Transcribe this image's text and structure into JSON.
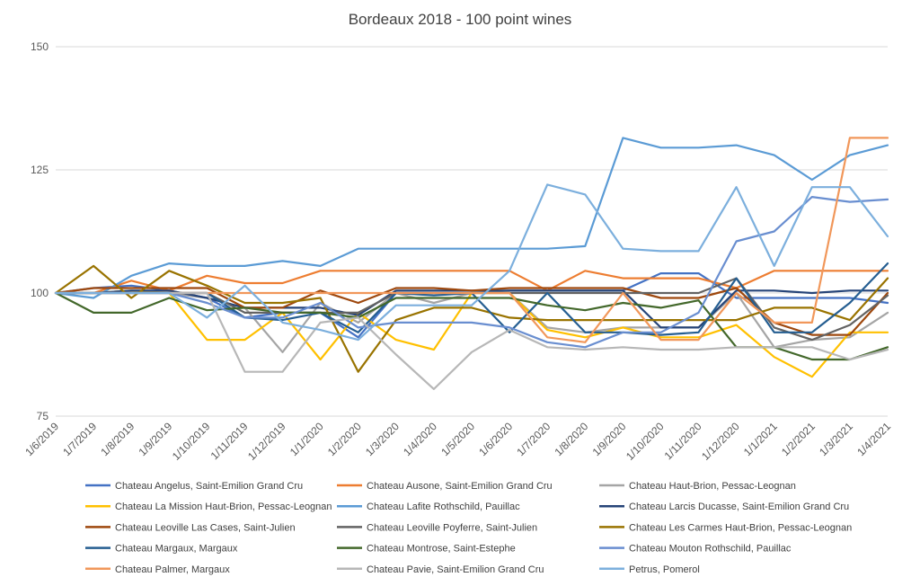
{
  "chart_data": {
    "type": "line",
    "title": "Bordeaux 2018 - 100 point wines",
    "xlabel": "",
    "ylabel": "",
    "ylim": [
      75,
      150
    ],
    "yticks": [
      75,
      100,
      125,
      150
    ],
    "grid": true,
    "legend_position": "bottom",
    "x": [
      "1/6/2019",
      "1/7/2019",
      "1/8/2019",
      "1/9/2019",
      "1/10/2019",
      "1/11/2019",
      "1/12/2019",
      "1/1/2020",
      "1/2/2020",
      "1/3/2020",
      "1/4/2020",
      "1/5/2020",
      "1/6/2020",
      "1/7/2020",
      "1/8/2020",
      "1/9/2020",
      "1/10/2020",
      "1/11/2020",
      "1/12/2020",
      "1/1/2021",
      "1/2/2021",
      "1/3/2021",
      "1/4/2021"
    ],
    "series": [
      {
        "name": "Chateau Angelus, Saint-Emilion Grand Cru",
        "color": "#4472C4",
        "values": [
          100,
          101,
          101.5,
          100.5,
          99,
          95,
          96,
          96,
          91,
          100,
          100,
          100,
          100.5,
          100.5,
          100.5,
          100.5,
          104,
          104,
          99,
          99,
          99,
          99,
          98
        ]
      },
      {
        "name": "Chateau Ausone, Saint-Emilion Grand Cru",
        "color": "#ED7D31",
        "values": [
          100,
          100,
          102.5,
          100.5,
          103.5,
          102,
          102,
          104.5,
          104.5,
          104.5,
          104.5,
          104.5,
          104.5,
          100.5,
          104.5,
          103,
          103,
          103,
          101,
          104.5,
          104.5,
          104.5,
          104.5
        ]
      },
      {
        "name": "Chateau Haut-Brion, Pessac-Leognan",
        "color": "#A5A5A5",
        "values": [
          100,
          100,
          100,
          100,
          99,
          97,
          88,
          98,
          94,
          100,
          98,
          100,
          100,
          93,
          92,
          93,
          93,
          93,
          100,
          89,
          90.5,
          91,
          96
        ]
      },
      {
        "name": "Chateau La Mission Haut-Brion, Pessac-Leognan",
        "color": "#FFC000",
        "values": [
          100,
          100,
          100.5,
          100,
          90.5,
          90.5,
          96,
          86.5,
          96,
          90.5,
          88.5,
          100,
          100,
          92.5,
          91,
          93,
          91,
          91,
          93.5,
          87,
          83,
          92,
          92
        ]
      },
      {
        "name": "Chateau Lafite Rothschild, Pauillac",
        "color": "#5B9BD5",
        "values": [
          100,
          99,
          103.5,
          106,
          105.5,
          105.5,
          106.5,
          105.5,
          109,
          109,
          109,
          109,
          109,
          109,
          109.5,
          131.5,
          129.5,
          129.5,
          130,
          128,
          123,
          128,
          130
        ]
      },
      {
        "name": "Chateau Larcis Ducasse, Saint-Emilion Grand Cru",
        "color": "#264478",
        "values": [
          100,
          100,
          100.5,
          100.5,
          99,
          97,
          97,
          97,
          95.5,
          100.5,
          100.5,
          100.5,
          100.5,
          100.5,
          100.5,
          100.5,
          93,
          93,
          100.5,
          100.5,
          100,
          100.5,
          100.5
        ]
      },
      {
        "name": "Chateau Leoville Las Cases, Saint-Julien",
        "color": "#9E480E",
        "values": [
          100,
          101,
          101,
          101,
          101,
          97,
          97,
          100.5,
          98,
          101,
          101,
          100.5,
          101,
          101,
          101,
          101,
          99,
          99,
          101,
          94,
          91.5,
          91.5,
          100
        ]
      },
      {
        "name": "Chateau Leoville Poyferre, Saint-Julien",
        "color": "#636363",
        "values": [
          100,
          100,
          100,
          100,
          100,
          96,
          96,
          96,
          96,
          100,
          100,
          100,
          100,
          100,
          100,
          100,
          100,
          100,
          103,
          93,
          90.5,
          93.5,
          99.5
        ]
      },
      {
        "name": "Chateau Les Carmes Haut-Brion, Pessac-Leognan",
        "color": "#997300",
        "values": [
          100,
          105.5,
          99,
          104.5,
          101.5,
          98,
          98,
          99,
          84,
          94.5,
          97,
          97,
          95,
          94.5,
          94.5,
          94.5,
          94.5,
          94.5,
          94.5,
          97,
          97,
          94.5,
          103
        ]
      },
      {
        "name": "Chateau Margaux, Margaux",
        "color": "#255E91",
        "values": [
          100,
          100,
          100,
          100,
          100,
          95,
          94.5,
          96,
          92,
          100,
          99.5,
          100,
          92,
          100,
          92,
          92,
          91.5,
          92,
          103,
          92,
          92,
          98,
          106
        ]
      },
      {
        "name": "Chateau Montrose, Saint-Estephe",
        "color": "#43682B",
        "values": [
          100,
          96,
          96,
          99,
          96.5,
          97,
          96,
          96,
          95,
          99,
          99,
          99,
          99,
          97.5,
          96.5,
          98,
          97,
          98.5,
          89,
          89,
          86.5,
          86.5,
          89
        ]
      },
      {
        "name": "Chateau Mouton Rothschild, Pauillac",
        "color": "#698ED0",
        "values": [
          100,
          100,
          100,
          100,
          98,
          95,
          95,
          98,
          93,
          94,
          94,
          94,
          93,
          90,
          89,
          92,
          92,
          96,
          110.5,
          112.5,
          119.5,
          118.5,
          119
        ]
      },
      {
        "name": "Chateau Palmer, Margaux",
        "color": "#F1975A",
        "values": [
          100,
          100,
          100,
          100,
          100,
          100,
          100,
          100,
          100,
          100,
          100,
          100,
          100,
          91,
          90,
          100,
          90.5,
          90.5,
          100,
          94,
          94,
          131.5,
          131.5
        ]
      },
      {
        "name": "Chateau Pavie, Saint-Emilion Grand Cru",
        "color": "#B7B7B7",
        "values": [
          100,
          100,
          100,
          100,
          100,
          84,
          84,
          94,
          95,
          87.5,
          80.5,
          88,
          92.5,
          89,
          88.5,
          89,
          88.5,
          88.5,
          89,
          89,
          89,
          86.5,
          88.5
        ]
      },
      {
        "name": "Petrus, Pomerol",
        "color": "#7CAFDD",
        "values": [
          100,
          100,
          100,
          100,
          95,
          101.5,
          94,
          92.5,
          90.5,
          97.5,
          97.5,
          97.5,
          104.5,
          122,
          120,
          109,
          108.5,
          108.5,
          121.5,
          105.5,
          121.5,
          121.5,
          111.5
        ]
      }
    ]
  }
}
